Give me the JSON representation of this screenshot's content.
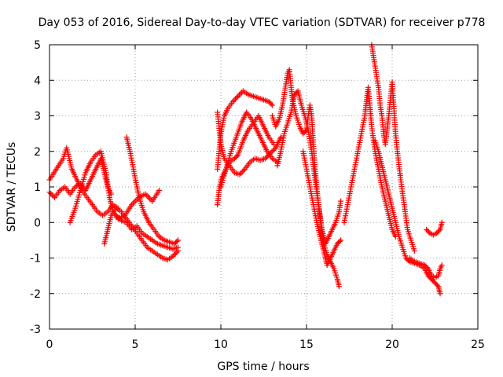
{
  "chart_data": {
    "type": "scatter",
    "title": "Day 053 of 2016, Sidereal Day-to-day VTEC variation (SDTVAR) for receiver p778",
    "xlabel": "GPS time / hours",
    "ylabel": "SDTVAR / TECUs",
    "xlim": [
      0,
      25
    ],
    "ylim": [
      -3,
      5
    ],
    "xticks": [
      "0",
      "5",
      "10",
      "15",
      "20",
      "25"
    ],
    "yticks": [
      "-3",
      "-2",
      "-1",
      "0",
      "1",
      "2",
      "3",
      "4",
      "5"
    ],
    "grid": true,
    "marker": "+",
    "series_color": "#ff0000",
    "series": [
      {
        "name": "p778",
        "segments": [
          [
            [
              0.0,
              0.85
            ],
            [
              0.3,
              0.7
            ],
            [
              0.6,
              0.9
            ],
            [
              0.9,
              1.0
            ],
            [
              1.2,
              0.8
            ],
            [
              1.5,
              1.0
            ],
            [
              1.8,
              1.1
            ],
            [
              2.1,
              0.9
            ],
            [
              2.4,
              1.2
            ],
            [
              2.7,
              1.5
            ],
            [
              3.0,
              1.8
            ],
            [
              3.2,
              1.4
            ],
            [
              3.4,
              1.0
            ],
            [
              3.6,
              0.8
            ]
          ],
          [
            [
              0.0,
              1.2
            ],
            [
              0.4,
              1.5
            ],
            [
              0.8,
              1.8
            ],
            [
              1.0,
              2.1
            ],
            [
              1.3,
              1.5
            ],
            [
              1.6,
              1.2
            ],
            [
              1.9,
              0.9
            ],
            [
              2.2,
              0.7
            ],
            [
              2.5,
              0.5
            ],
            [
              2.8,
              0.3
            ],
            [
              3.1,
              0.2
            ],
            [
              3.4,
              0.3
            ],
            [
              3.7,
              0.5
            ],
            [
              4.0,
              0.4
            ]
          ],
          [
            [
              1.2,
              0.0
            ],
            [
              1.5,
              0.4
            ],
            [
              1.8,
              0.9
            ],
            [
              2.1,
              1.4
            ],
            [
              2.4,
              1.7
            ],
            [
              2.7,
              1.9
            ],
            [
              3.0,
              2.0
            ],
            [
              3.3,
              1.4
            ],
            [
              3.5,
              0.7
            ],
            [
              3.7,
              0.3
            ],
            [
              4.0,
              0.1
            ],
            [
              4.4,
              0.2
            ],
            [
              4.8,
              0.5
            ],
            [
              5.2,
              0.7
            ],
            [
              5.6,
              0.8
            ],
            [
              6.0,
              0.6
            ],
            [
              6.4,
              0.9
            ]
          ],
          [
            [
              3.2,
              -0.6
            ],
            [
              3.4,
              -0.2
            ],
            [
              3.6,
              0.2
            ],
            [
              3.9,
              0.4
            ],
            [
              4.2,
              0.3
            ],
            [
              4.5,
              0.1
            ],
            [
              4.8,
              -0.1
            ],
            [
              5.1,
              -0.3
            ],
            [
              5.4,
              -0.5
            ],
            [
              5.7,
              -0.7
            ],
            [
              6.0,
              -0.8
            ],
            [
              6.3,
              -0.9
            ],
            [
              6.6,
              -1.0
            ],
            [
              6.9,
              -1.05
            ],
            [
              7.2,
              -0.95
            ],
            [
              7.5,
              -0.8
            ]
          ],
          [
            [
              4.5,
              2.4
            ],
            [
              4.7,
              2.0
            ],
            [
              4.9,
              1.5
            ],
            [
              5.1,
              1.0
            ],
            [
              5.3,
              0.6
            ],
            [
              5.5,
              0.3
            ],
            [
              5.8,
              0.0
            ],
            [
              6.1,
              -0.2
            ],
            [
              6.4,
              -0.4
            ],
            [
              6.7,
              -0.5
            ],
            [
              7.0,
              -0.55
            ],
            [
              7.3,
              -0.6
            ],
            [
              7.5,
              -0.5
            ]
          ],
          [
            [
              3.9,
              0.2
            ],
            [
              4.2,
              0.05
            ],
            [
              4.5,
              0.0
            ],
            [
              4.8,
              -0.2
            ],
            [
              5.1,
              -0.1
            ],
            [
              5.4,
              -0.3
            ],
            [
              5.7,
              -0.4
            ],
            [
              6.0,
              -0.5
            ],
            [
              6.3,
              -0.6
            ],
            [
              6.6,
              -0.65
            ],
            [
              6.9,
              -0.7
            ],
            [
              7.2,
              -0.75
            ],
            [
              7.5,
              -0.7
            ]
          ],
          [
            [
              9.8,
              0.5
            ],
            [
              9.9,
              0.9
            ],
            [
              10.0,
              1.2
            ],
            [
              10.2,
              1.4
            ],
            [
              10.5,
              1.7
            ],
            [
              10.8,
              1.8
            ],
            [
              11.0,
              1.9
            ],
            [
              11.3,
              2.3
            ],
            [
              11.6,
              2.6
            ],
            [
              11.9,
              2.8
            ],
            [
              12.2,
              3.0
            ],
            [
              12.5,
              2.7
            ],
            [
              12.8,
              2.4
            ],
            [
              13.1,
              2.2
            ]
          ],
          [
            [
              9.8,
              1.5
            ],
            [
              10.0,
              2.5
            ],
            [
              10.2,
              3.0
            ],
            [
              10.4,
              3.2
            ],
            [
              10.7,
              3.4
            ],
            [
              11.0,
              3.55
            ],
            [
              11.3,
              3.7
            ],
            [
              11.6,
              3.6
            ],
            [
              11.9,
              3.55
            ],
            [
              12.2,
              3.5
            ],
            [
              12.5,
              3.45
            ],
            [
              12.8,
              3.4
            ],
            [
              13.0,
              3.3
            ]
          ],
          [
            [
              9.8,
              3.1
            ],
            [
              10.0,
              2.2
            ],
            [
              10.2,
              1.8
            ],
            [
              10.5,
              1.6
            ],
            [
              10.8,
              1.4
            ],
            [
              11.1,
              1.35
            ],
            [
              11.4,
              1.5
            ],
            [
              11.7,
              1.7
            ],
            [
              12.0,
              1.8
            ],
            [
              12.3,
              1.75
            ],
            [
              12.6,
              1.8
            ],
            [
              12.9,
              1.95
            ],
            [
              13.2,
              2.1
            ],
            [
              13.5,
              2.4
            ]
          ],
          [
            [
              10.0,
              1.0
            ],
            [
              10.3,
              1.5
            ],
            [
              10.6,
              2.0
            ],
            [
              10.9,
              2.4
            ],
            [
              11.2,
              2.8
            ],
            [
              11.5,
              3.1
            ],
            [
              11.8,
              2.9
            ],
            [
              12.1,
              2.6
            ],
            [
              12.4,
              2.3
            ],
            [
              12.7,
              2.0
            ],
            [
              13.0,
              1.8
            ],
            [
              13.3,
              1.7
            ]
          ],
          [
            [
              13.0,
              3.0
            ],
            [
              13.2,
              2.7
            ],
            [
              13.4,
              2.9
            ],
            [
              13.6,
              3.3
            ],
            [
              13.8,
              3.9
            ],
            [
              13.9,
              4.2
            ],
            [
              14.0,
              4.3
            ],
            [
              14.1,
              3.8
            ],
            [
              14.2,
              3.4
            ],
            [
              14.4,
              3.0
            ],
            [
              14.6,
              2.7
            ],
            [
              14.8,
              2.5
            ],
            [
              15.0,
              2.6
            ],
            [
              15.1,
              3.0
            ],
            [
              15.2,
              3.3
            ],
            [
              15.3,
              3.0
            ],
            [
              15.4,
              2.2
            ],
            [
              15.5,
              1.5
            ],
            [
              15.6,
              1.0
            ],
            [
              15.7,
              0.5
            ],
            [
              15.8,
              0.1
            ],
            [
              15.9,
              -0.3
            ],
            [
              16.0,
              -0.6
            ],
            [
              16.2,
              -0.9
            ],
            [
              16.4,
              -1.1
            ],
            [
              16.6,
              -1.3
            ],
            [
              16.8,
              -1.6
            ],
            [
              16.9,
              -1.8
            ]
          ],
          [
            [
              13.3,
              1.6
            ],
            [
              13.5,
              2.0
            ],
            [
              13.7,
              2.5
            ],
            [
              13.9,
              2.8
            ],
            [
              14.1,
              3.1
            ],
            [
              14.3,
              3.6
            ],
            [
              14.5,
              3.7
            ],
            [
              14.7,
              3.3
            ],
            [
              14.9,
              3.0
            ],
            [
              15.1,
              2.6
            ],
            [
              15.3,
              2.0
            ],
            [
              15.5,
              1.2
            ],
            [
              15.7,
              0.5
            ],
            [
              15.9,
              -0.2
            ],
            [
              16.1,
              -0.6
            ],
            [
              16.3,
              -0.4
            ],
            [
              16.5,
              -0.2
            ],
            [
              16.7,
              0.0
            ],
            [
              16.9,
              0.3
            ],
            [
              17.0,
              0.6
            ]
          ],
          [
            [
              14.8,
              2.0
            ],
            [
              15.0,
              1.5
            ],
            [
              15.2,
              1.0
            ],
            [
              15.4,
              0.5
            ],
            [
              15.6,
              0.0
            ],
            [
              15.8,
              -0.4
            ],
            [
              16.0,
              -0.8
            ],
            [
              16.2,
              -1.2
            ],
            [
              16.4,
              -1.0
            ],
            [
              16.6,
              -0.8
            ],
            [
              16.8,
              -0.6
            ],
            [
              17.0,
              -0.5
            ]
          ],
          [
            [
              17.2,
              0.0
            ],
            [
              17.4,
              0.5
            ],
            [
              17.6,
              1.0
            ],
            [
              17.8,
              1.5
            ],
            [
              18.0,
              2.0
            ],
            [
              18.2,
              2.5
            ],
            [
              18.4,
              3.0
            ],
            [
              18.5,
              3.4
            ],
            [
              18.6,
              3.8
            ],
            [
              18.7,
              3.3
            ],
            [
              18.8,
              2.7
            ],
            [
              19.0,
              2.0
            ],
            [
              19.2,
              1.5
            ],
            [
              19.4,
              1.0
            ],
            [
              19.6,
              0.6
            ],
            [
              19.8,
              0.2
            ],
            [
              20.0,
              -0.2
            ],
            [
              20.2,
              -0.4
            ]
          ],
          [
            [
              18.8,
              5.0
            ],
            [
              18.9,
              4.7
            ],
            [
              19.0,
              4.4
            ],
            [
              19.1,
              4.1
            ],
            [
              19.2,
              3.8
            ],
            [
              19.3,
              3.3
            ],
            [
              19.4,
              3.0
            ],
            [
              19.5,
              2.5
            ],
            [
              19.6,
              2.2
            ],
            [
              19.7,
              2.6
            ],
            [
              19.8,
              3.0
            ],
            [
              19.9,
              3.5
            ],
            [
              20.0,
              3.95
            ],
            [
              20.1,
              3.2
            ],
            [
              20.2,
              2.5
            ],
            [
              20.3,
              2.0
            ],
            [
              20.5,
              1.2
            ],
            [
              20.7,
              0.5
            ],
            [
              20.9,
              -0.2
            ],
            [
              21.1,
              -0.5
            ],
            [
              21.3,
              -0.8
            ]
          ],
          [
            [
              19.0,
              2.3
            ],
            [
              19.2,
              2.0
            ],
            [
              19.4,
              1.6
            ],
            [
              19.6,
              1.2
            ],
            [
              19.8,
              0.8
            ],
            [
              20.0,
              0.4
            ],
            [
              20.2,
              0.0
            ],
            [
              20.4,
              -0.4
            ],
            [
              20.6,
              -0.7
            ],
            [
              20.8,
              -1.0
            ],
            [
              21.0,
              -1.1
            ],
            [
              21.3,
              -1.15
            ],
            [
              21.6,
              -1.2
            ],
            [
              21.9,
              -1.3
            ],
            [
              22.1,
              -1.5
            ],
            [
              22.3,
              -1.6
            ],
            [
              22.5,
              -1.7
            ],
            [
              22.7,
              -1.8
            ],
            [
              22.8,
              -2.0
            ]
          ],
          [
            [
              21.0,
              -1.0
            ],
            [
              21.3,
              -1.1
            ],
            [
              21.6,
              -1.15
            ],
            [
              21.9,
              -1.2
            ],
            [
              22.1,
              -1.3
            ],
            [
              22.3,
              -1.5
            ],
            [
              22.5,
              -1.55
            ],
            [
              22.7,
              -1.5
            ],
            [
              22.8,
              -1.3
            ],
            [
              22.9,
              -1.2
            ]
          ],
          [
            [
              22.0,
              -0.2
            ],
            [
              22.2,
              -0.3
            ],
            [
              22.4,
              -0.35
            ],
            [
              22.6,
              -0.3
            ],
            [
              22.8,
              -0.2
            ],
            [
              22.9,
              0.0
            ]
          ]
        ]
      }
    ]
  }
}
